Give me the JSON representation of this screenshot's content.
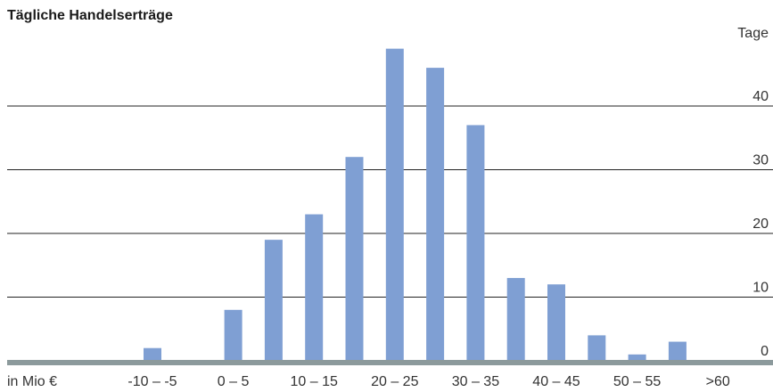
{
  "chart_data": {
    "type": "bar",
    "title": "Tägliche Handelserträge",
    "xlabel": "in Mio €",
    "ylabel": "Tage",
    "ylim": [
      0,
      50
    ],
    "yticks": [
      0,
      10,
      20,
      30,
      40
    ],
    "grid": true,
    "colors": {
      "bar": "#7f9fd3",
      "baseline": "#8c9a9c",
      "gridline": "#222222"
    },
    "x_tick_labels": [
      "-10 – -5",
      "0 – 5",
      "10 – 15",
      "20 – 25",
      "30 – 35",
      "40 – 45",
      "50 – 55",
      ">60"
    ],
    "categories": [
      "",
      "",
      "",
      "-10 – -5",
      "",
      "0 – 5",
      "",
      "10 – 15",
      "",
      "20 – 25",
      "",
      "30 – 35",
      "",
      "40 – 45",
      "",
      "50 – 55",
      "",
      ">60"
    ],
    "values": [
      0,
      0,
      0,
      2,
      0,
      8,
      19,
      23,
      32,
      49,
      46,
      37,
      13,
      12,
      4,
      1,
      3,
      0
    ]
  }
}
